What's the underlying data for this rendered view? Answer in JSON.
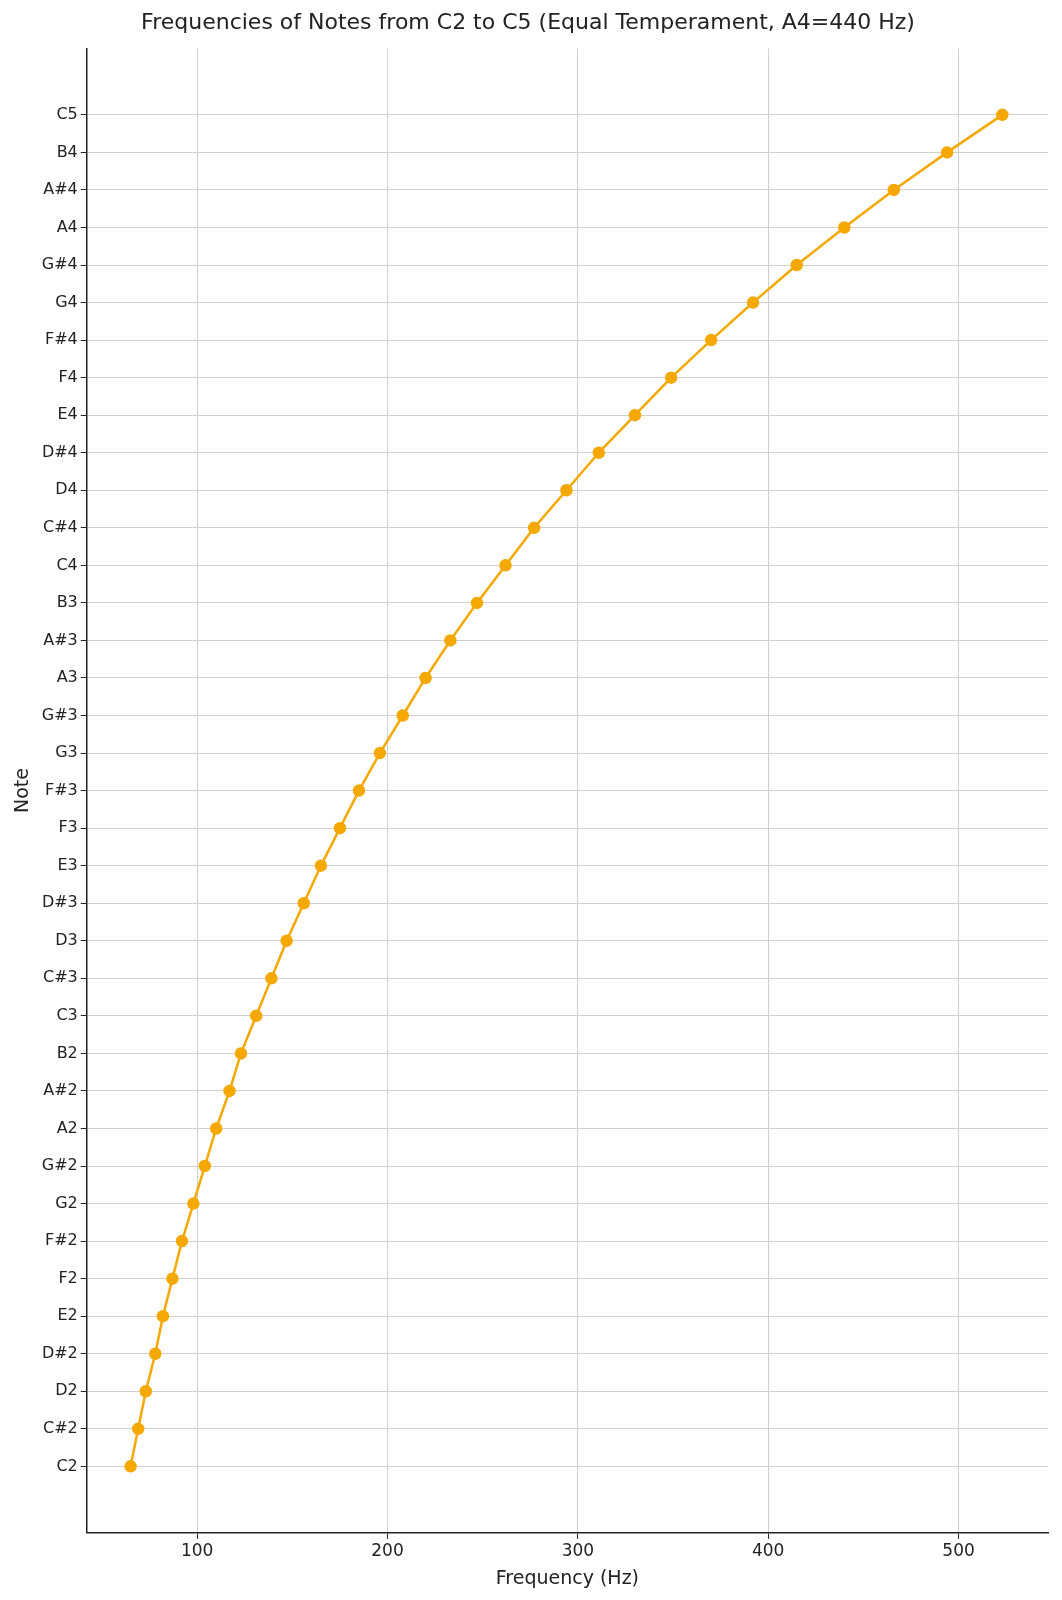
{
  "chart_data": {
    "type": "line",
    "orientation": "horizontal",
    "title": "Frequencies of Notes from C2 to C5 (Equal Temperament, A4=440 Hz)",
    "xlabel": "Frequency (Hz)",
    "ylabel": "Note",
    "categories": [
      "C5",
      "B4",
      "A#4",
      "A4",
      "G#4",
      "G4",
      "F#4",
      "F4",
      "E4",
      "D#4",
      "D4",
      "C#4",
      "C4",
      "B3",
      "A#3",
      "A3",
      "G#3",
      "G3",
      "F#3",
      "F3",
      "E3",
      "D#3",
      "D3",
      "C#3",
      "C3",
      "B2",
      "A#2",
      "A2",
      "G#2",
      "G2",
      "F#2",
      "F2",
      "E2",
      "D#2",
      "D2",
      "C#2",
      "C2"
    ],
    "values": [
      523,
      494,
      466,
      440,
      415,
      392,
      370,
      349,
      330,
      311,
      294,
      277,
      262,
      247,
      233,
      220,
      208,
      196,
      185,
      175,
      165,
      156,
      147,
      139,
      131,
      123,
      117,
      110,
      104,
      98,
      92,
      87,
      82,
      78,
      73,
      69,
      65
    ],
    "color": "#f5a800",
    "xlim": [
      42,
      547
    ],
    "xticks": [
      100,
      200,
      300,
      400,
      500
    ],
    "grid": true,
    "marker": "circle",
    "line_style": "solid",
    "legend": false
  }
}
